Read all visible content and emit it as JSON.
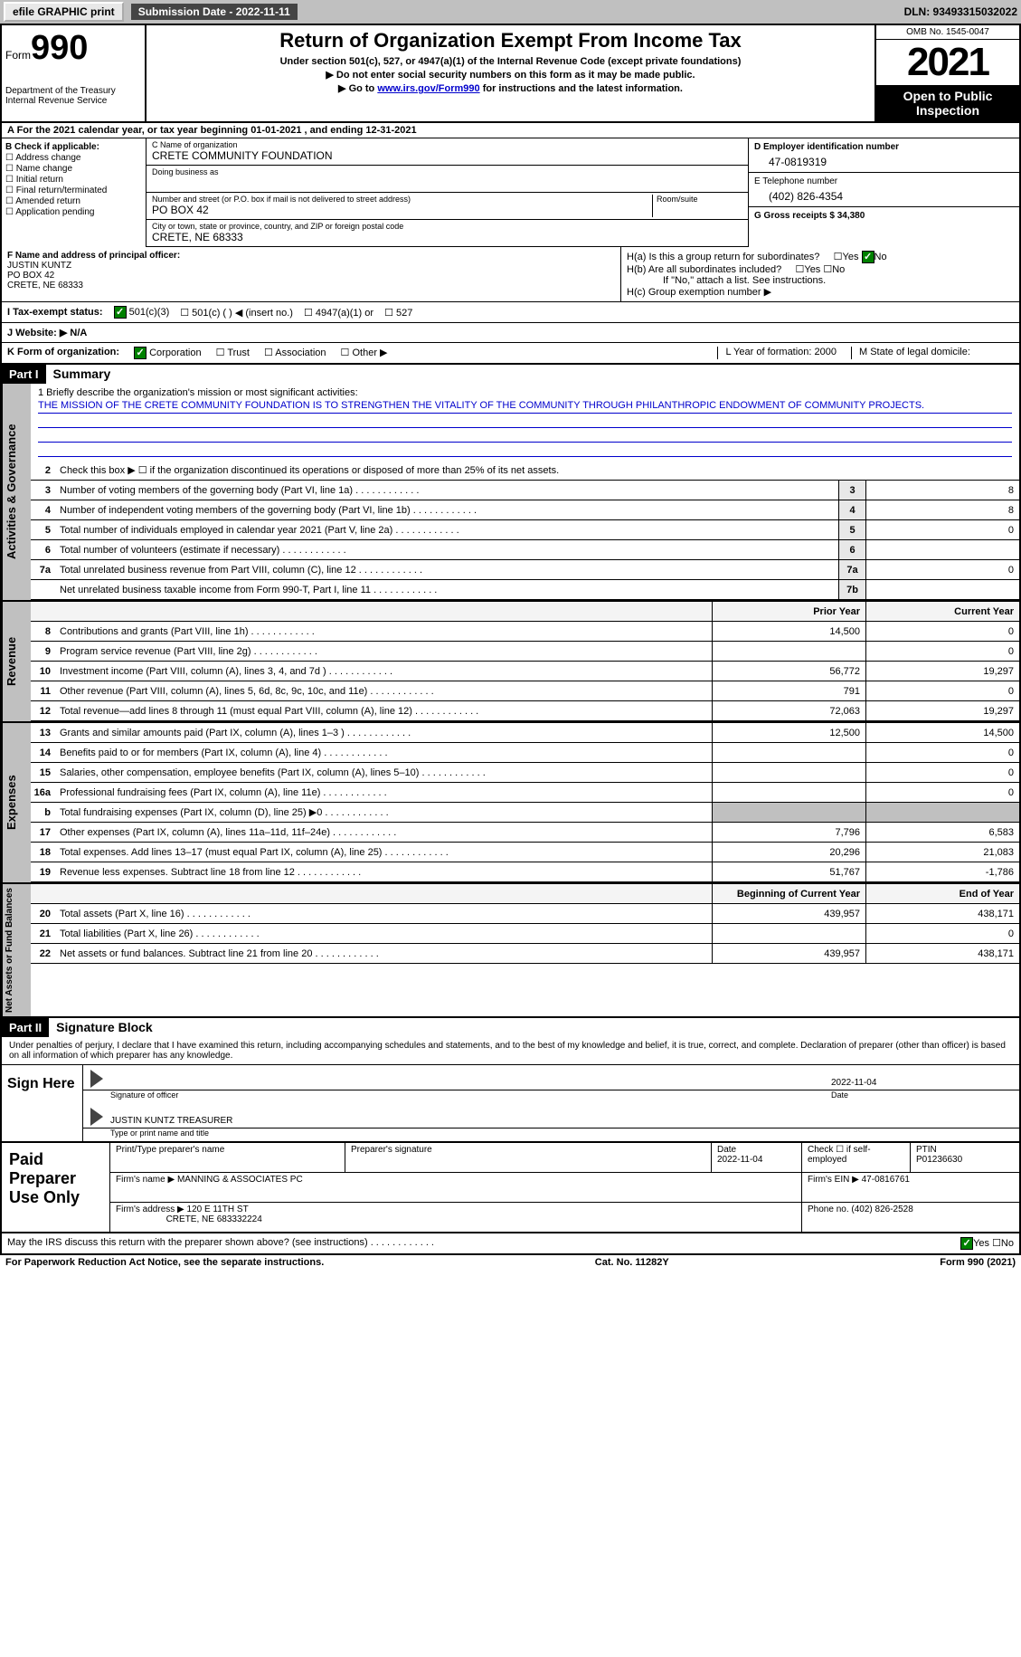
{
  "topbar": {
    "efile_label": "efile GRAPHIC print",
    "submission_label": "Submission Date - 2022-11-11",
    "dln_label": "DLN: 93493315032022"
  },
  "header": {
    "form_label": "Form",
    "form_num": "990",
    "dept": "Department of the Treasury\nInternal Revenue Service",
    "title": "Return of Organization Exempt From Income Tax",
    "sub1": "Under section 501(c), 527, or 4947(a)(1) of the Internal Revenue Code (except private foundations)",
    "sub2": "▶ Do not enter social security numbers on this form as it may be made public.",
    "sub3_pre": "▶ Go to ",
    "sub3_link": "www.irs.gov/Form990",
    "sub3_post": " for instructions and the latest information.",
    "omb": "OMB No. 1545-0047",
    "year": "2021",
    "otp": "Open to Public Inspection"
  },
  "row_a": "A For the 2021 calendar year, or tax year beginning 01-01-2021    , and ending 12-31-2021",
  "col_b": {
    "title": "B Check if applicable:",
    "items": [
      "Address change",
      "Name change",
      "Initial return",
      "Final return/terminated",
      "Amended return",
      "Application pending"
    ]
  },
  "col_c": {
    "name_lbl": "C Name of organization",
    "name": "CRETE COMMUNITY FOUNDATION",
    "dba_lbl": "Doing business as",
    "addr_lbl": "Number and street (or P.O. box if mail is not delivered to street address)",
    "room_lbl": "Room/suite",
    "addr": "PO BOX 42",
    "city_lbl": "City or town, state or province, country, and ZIP or foreign postal code",
    "city": "CRETE, NE  68333"
  },
  "col_d": {
    "ein_lbl": "D Employer identification number",
    "ein": "47-0819319",
    "tel_lbl": "E Telephone number",
    "tel": "(402) 826-4354",
    "gross_lbl": "G Gross receipts $ 34,380"
  },
  "fg": {
    "f_lbl": "F Name and address of principal officer:",
    "f_name": "JUSTIN KUNTZ",
    "f_addr1": "PO BOX 42",
    "f_addr2": "CRETE, NE  68333",
    "ha": "H(a)  Is this a group return for subordinates?",
    "hb": "H(b)  Are all subordinates included?",
    "hb_note": "If \"No,\" attach a list. See instructions.",
    "hc": "H(c)  Group exemption number ▶"
  },
  "i_line": {
    "label": "I   Tax-exempt status:",
    "opts": [
      "501(c)(3)",
      "501(c) (  ) ◀ (insert no.)",
      "4947(a)(1) or",
      "527"
    ]
  },
  "j_line": "J   Website: ▶   N/A",
  "k_line": {
    "label": "K Form of organization:",
    "opts": [
      "Corporation",
      "Trust",
      "Association",
      "Other ▶"
    ],
    "l": "L Year of formation: 2000",
    "m": "M State of legal domicile:"
  },
  "part1": {
    "hdr": "Part I",
    "title": "Summary",
    "mission_lbl": "1   Briefly describe the organization's mission or most significant activities:",
    "mission": "THE MISSION OF THE CRETE COMMUNITY FOUNDATION IS TO STRENGTHEN THE VITALITY OF THE COMMUNITY THROUGH PHILANTHROPIC ENDOWMENT OF COMMUNITY PROJECTS.",
    "line2": "Check this box ▶ ☐  if the organization discontinued its operations or disposed of more than 25% of its net assets."
  },
  "gov_rows": [
    {
      "n": "3",
      "t": "Number of voting members of the governing body (Part VI, line 1a)",
      "box": "3",
      "cv": "8"
    },
    {
      "n": "4",
      "t": "Number of independent voting members of the governing body (Part VI, line 1b)",
      "box": "4",
      "cv": "8"
    },
    {
      "n": "5",
      "t": "Total number of individuals employed in calendar year 2021 (Part V, line 2a)",
      "box": "5",
      "cv": "0"
    },
    {
      "n": "6",
      "t": "Total number of volunteers (estimate if necessary)",
      "box": "6",
      "cv": ""
    },
    {
      "n": "7a",
      "t": "Total unrelated business revenue from Part VIII, column (C), line 12",
      "box": "7a",
      "cv": "0"
    },
    {
      "n": "",
      "t": "Net unrelated business taxable income from Form 990-T, Part I, line 11",
      "box": "7b",
      "cv": ""
    }
  ],
  "col_hdr": {
    "pv": "Prior Year",
    "cv": "Current Year"
  },
  "rev_rows": [
    {
      "n": "8",
      "t": "Contributions and grants (Part VIII, line 1h)",
      "pv": "14,500",
      "cv": "0"
    },
    {
      "n": "9",
      "t": "Program service revenue (Part VIII, line 2g)",
      "pv": "",
      "cv": "0"
    },
    {
      "n": "10",
      "t": "Investment income (Part VIII, column (A), lines 3, 4, and 7d )",
      "pv": "56,772",
      "cv": "19,297"
    },
    {
      "n": "11",
      "t": "Other revenue (Part VIII, column (A), lines 5, 6d, 8c, 9c, 10c, and 11e)",
      "pv": "791",
      "cv": "0"
    },
    {
      "n": "12",
      "t": "Total revenue—add lines 8 through 11 (must equal Part VIII, column (A), line 12)",
      "pv": "72,063",
      "cv": "19,297"
    }
  ],
  "exp_rows": [
    {
      "n": "13",
      "t": "Grants and similar amounts paid (Part IX, column (A), lines 1–3 )",
      "pv": "12,500",
      "cv": "14,500"
    },
    {
      "n": "14",
      "t": "Benefits paid to or for members (Part IX, column (A), line 4)",
      "pv": "",
      "cv": "0"
    },
    {
      "n": "15",
      "t": "Salaries, other compensation, employee benefits (Part IX, column (A), lines 5–10)",
      "pv": "",
      "cv": "0"
    },
    {
      "n": "16a",
      "t": "Professional fundraising fees (Part IX, column (A), line 11e)",
      "pv": "",
      "cv": "0"
    },
    {
      "n": "b",
      "t": "Total fundraising expenses (Part IX, column (D), line 25) ▶0",
      "pv": "shade",
      "cv": "shade"
    },
    {
      "n": "17",
      "t": "Other expenses (Part IX, column (A), lines 11a–11d, 11f–24e)",
      "pv": "7,796",
      "cv": "6,583"
    },
    {
      "n": "18",
      "t": "Total expenses. Add lines 13–17 (must equal Part IX, column (A), line 25)",
      "pv": "20,296",
      "cv": "21,083"
    },
    {
      "n": "19",
      "t": "Revenue less expenses. Subtract line 18 from line 12",
      "pv": "51,767",
      "cv": "-1,786"
    }
  ],
  "na_hdr": {
    "pv": "Beginning of Current Year",
    "cv": "End of Year"
  },
  "na_rows": [
    {
      "n": "20",
      "t": "Total assets (Part X, line 16)",
      "pv": "439,957",
      "cv": "438,171"
    },
    {
      "n": "21",
      "t": "Total liabilities (Part X, line 26)",
      "pv": "",
      "cv": "0"
    },
    {
      "n": "22",
      "t": "Net assets or fund balances. Subtract line 21 from line 20",
      "pv": "439,957",
      "cv": "438,171"
    }
  ],
  "part2": {
    "hdr": "Part II",
    "title": "Signature Block",
    "decl": "Under penalties of perjury, I declare that I have examined this return, including accompanying schedules and statements, and to the best of my knowledge and belief, it is true, correct, and complete. Declaration of preparer (other than officer) is based on all information of which preparer has any knowledge."
  },
  "sign": {
    "left": "Sign Here",
    "date": "2022-11-04",
    "sig_lbl": "Signature of officer",
    "date_lbl": "Date",
    "name": "JUSTIN KUNTZ  TREASURER",
    "name_lbl": "Type or print name and title"
  },
  "paid": {
    "left": "Paid Preparer Use Only",
    "h1": "Print/Type preparer's name",
    "h2": "Preparer's signature",
    "h3": "Date",
    "h3v": "2022-11-04",
    "h4": "Check ☐ if self-employed",
    "h5": "PTIN",
    "h5v": "P01236630",
    "firm_lbl": "Firm's name    ▶",
    "firm": "MANNING & ASSOCIATES PC",
    "ein_lbl": "Firm's EIN ▶",
    "ein": "47-0816761",
    "addr_lbl": "Firm's address ▶",
    "addr1": "120 E 11TH ST",
    "addr2": "CRETE, NE  683332224",
    "phone_lbl": "Phone no.",
    "phone": "(402) 826-2528"
  },
  "footer": {
    "q": "May the IRS discuss this return with the preparer shown above? (see instructions)",
    "notice": "For Paperwork Reduction Act Notice, see the separate instructions.",
    "cat": "Cat. No. 11282Y",
    "form": "Form 990 (2021)"
  }
}
